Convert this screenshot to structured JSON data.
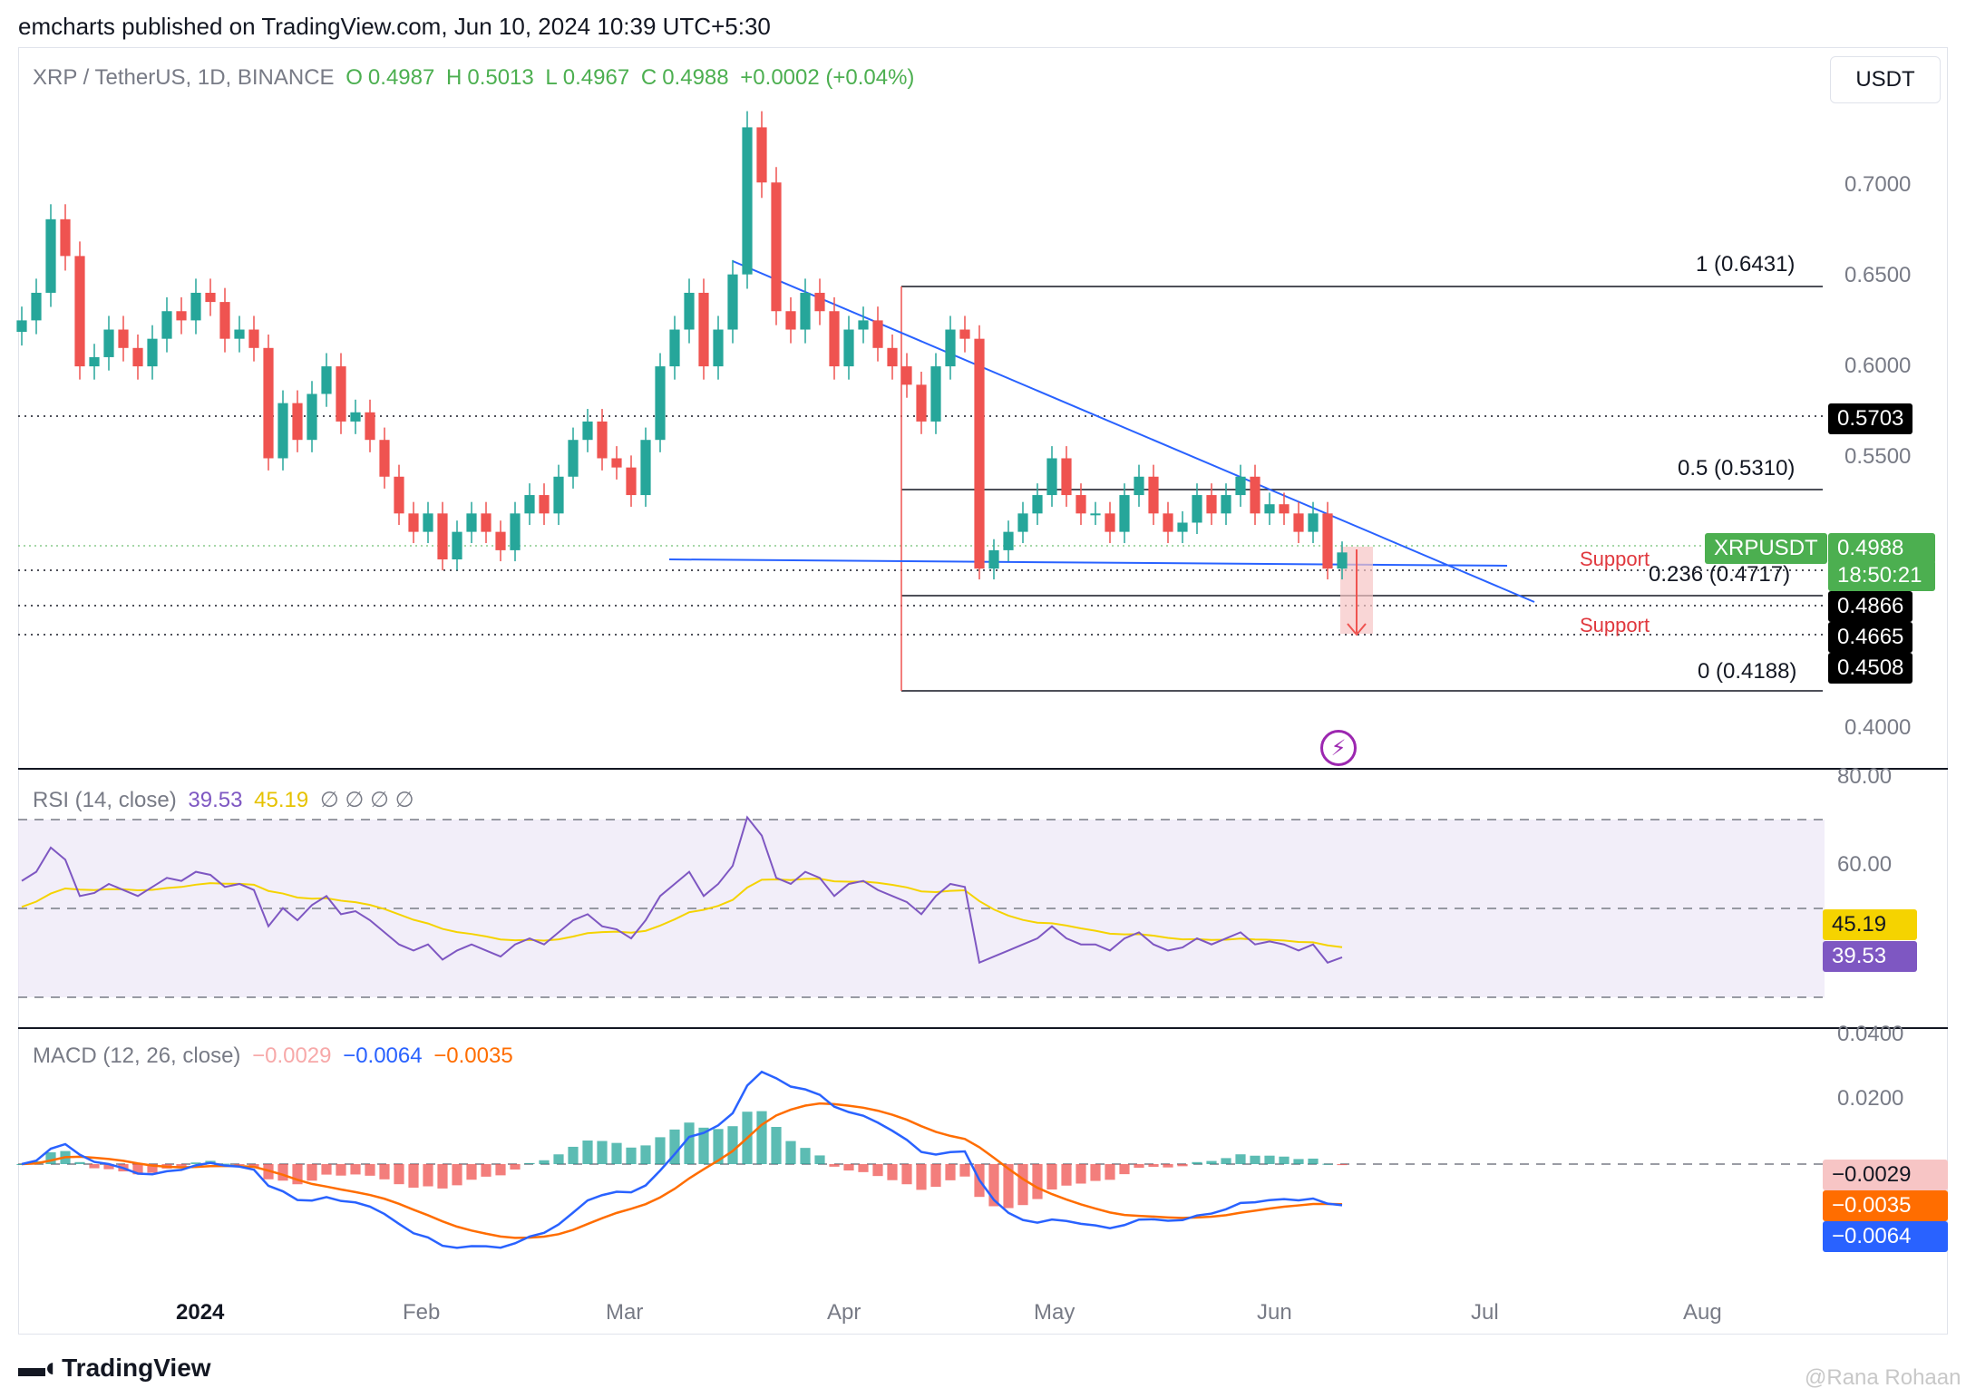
{
  "header": {
    "published": "emcharts published on TradingView.com, Jun 10, 2024 10:39 UTC+5:30"
  },
  "currency_button": "USDT",
  "legend": {
    "symbol": "XRP / TetherUS, 1D, BINANCE",
    "o_label": "O",
    "o_value": "0.4987",
    "h_label": "H",
    "h_value": "0.5013",
    "l_label": "L",
    "l_value": "0.4967",
    "c_label": "C",
    "c_value": "0.4988",
    "change": "+0.0002 (+0.04%)"
  },
  "rsi_legend": {
    "name": "RSI (14, close)",
    "value1": "39.53",
    "value2": "45.19",
    "extras": "∅ ∅ ∅ ∅"
  },
  "macd_legend": {
    "name": "MACD (12, 26, close)",
    "hist": "−0.0029",
    "macd": "−0.0064",
    "signal": "−0.0035"
  },
  "price_axis": {
    "ticks": [
      "0.7000",
      "0.6500",
      "0.6000",
      "0.5500",
      "0.4000"
    ],
    "tags": {
      "level_5703": "0.5703",
      "symbol": "XRPUSDT",
      "last": "0.4988",
      "countdown": "18:50:21",
      "level_4866": "0.4866",
      "level_4665": "0.4665",
      "level_4508": "0.4508"
    }
  },
  "rsi_axis": {
    "ticks": [
      "80.00",
      "60.00"
    ],
    "tag_signal": "45.19",
    "tag_rsi": "39.53"
  },
  "macd_axis": {
    "ticks": [
      "0.0400",
      "0.0200"
    ],
    "tag_hist": "−0.0029",
    "tag_signal": "−0.0035",
    "tag_macd": "−0.0064"
  },
  "fib": {
    "f1": "1 (0.6431)",
    "f05": "0.5 (0.5310)",
    "f0236": "0.236 (0.4717)",
    "f0": "0 (0.4188)"
  },
  "annotations": {
    "support_upper": "Support",
    "support_lower": "Support"
  },
  "time_axis": [
    "2024",
    "Feb",
    "Mar",
    "Apr",
    "May",
    "Jun",
    "Jul",
    "Aug"
  ],
  "footer": {
    "brand": "TradingView",
    "watermark": "@Rana Rohaan"
  },
  "colors": {
    "up": "#26a69a",
    "down": "#ef5350",
    "trendline": "#2962ff",
    "rsi": "#7e57c2",
    "rsi_ma": "#f5d300",
    "macd": "#2962ff",
    "signal": "#ff6d00"
  },
  "chart_data": {
    "type": "candlestick",
    "symbol": "XRPUSDT",
    "interval": "1D",
    "price_range": [
      0.39,
      0.745
    ],
    "close_series": [
      0.625,
      0.64,
      0.68,
      0.66,
      0.6,
      0.605,
      0.62,
      0.61,
      0.6,
      0.615,
      0.63,
      0.625,
      0.64,
      0.635,
      0.615,
      0.62,
      0.61,
      0.55,
      0.58,
      0.56,
      0.585,
      0.6,
      0.57,
      0.575,
      0.56,
      0.54,
      0.52,
      0.51,
      0.52,
      0.495,
      0.51,
      0.52,
      0.51,
      0.5,
      0.52,
      0.53,
      0.52,
      0.54,
      0.56,
      0.57,
      0.55,
      0.545,
      0.53,
      0.56,
      0.6,
      0.62,
      0.64,
      0.6,
      0.62,
      0.65,
      0.73,
      0.7,
      0.63,
      0.62,
      0.64,
      0.63,
      0.6,
      0.62,
      0.625,
      0.61,
      0.6,
      0.59,
      0.57,
      0.6,
      0.62,
      0.615,
      0.49,
      0.5,
      0.51,
      0.52,
      0.53,
      0.55,
      0.53,
      0.52,
      0.52,
      0.51,
      0.53,
      0.54,
      0.52,
      0.51,
      0.515,
      0.53,
      0.52,
      0.53,
      0.54,
      0.52,
      0.525,
      0.52,
      0.51,
      0.52,
      0.49,
      0.4988
    ],
    "fib_levels": [
      {
        "ratio": "1",
        "price": 0.6431
      },
      {
        "ratio": "0.5",
        "price": 0.531
      },
      {
        "ratio": "0.236",
        "price": 0.4717
      },
      {
        "ratio": "0",
        "price": 0.4188
      }
    ],
    "horizontal_levels": [
      0.5703,
      0.4866,
      0.4665,
      0.4508
    ],
    "rsi": {
      "value": 39.53,
      "ma": 45.19,
      "bands": [
        70,
        30
      ]
    },
    "macd": {
      "histogram": -0.0029,
      "macd": -0.0064,
      "signal": -0.0035
    }
  }
}
